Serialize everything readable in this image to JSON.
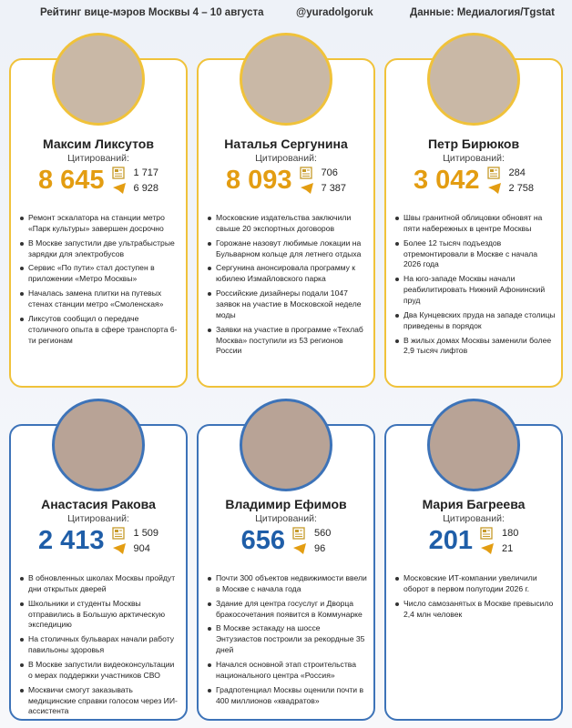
{
  "header": {
    "title": "Рейтинг вице-мэров Москвы 4 – 10 августа",
    "channel": "@yuradolgoruk",
    "source": "Данные: Медиалогия/Tgstat"
  },
  "cards": [
    {
      "name": "Максим Ликсутов",
      "label": "Цитирований:",
      "total": "8 645",
      "media": "1 717",
      "telegram": "6 928",
      "items": [
        "Ремонт эскалатора на станции метро «Парк культуры» завершен досрочно",
        "В Москве запустили две ультрабыстрые зарядки для электробусов",
        "Сервис «По пути» стал доступен в приложении «Метро Москвы»",
        "Началась замена плитки на путевых стенах станции метро «Смоленская»",
        "Ликсутов сообщил о передаче столичного опыта в сфере транспорта 6-ти регионам"
      ]
    },
    {
      "name": "Наталья Сергунина",
      "label": "Цитирований:",
      "total": "8 093",
      "media": "706",
      "telegram": "7 387",
      "items": [
        "Московские издательства заключили свыше 20 экспортных договоров",
        "Горожане назовут любимые локации на Бульварном кольце для летнего отдыха",
        "Сергунина анонсировала программу к юбилею Измайловского парка",
        "Российские дизайнеры подали 1047 заявок на участие в Московской неделе моды",
        "Заявки на участие в программе «Техлаб Москва» поступили из 53 регионов России"
      ]
    },
    {
      "name": "Петр Бирюков",
      "label": "Цитирований:",
      "total": "3 042",
      "media": "284",
      "telegram": "2 758",
      "items": [
        "Швы гранитной облицовки обновят на пяти набережных в центре Москвы",
        "Более 12 тысяч подъездов отремонтировали в Москве с начала 2026 года",
        "На юго-западе Москвы начали реабилитировать Нижний Афонинский пруд",
        "Два Кунцевских пруда на западе столицы приведены в порядок",
        "В жилых домах Москвы заменили более 2,9 тысяч лифтов"
      ]
    },
    {
      "name": "Анастасия Ракова",
      "label": "Цитирований:",
      "total": "2 413",
      "media": "1 509",
      "telegram": "904",
      "items": [
        "В обновленных школах Москвы пройдут дни открытых дверей",
        "Школьники и студенты Москвы отправились в Большую арктическую экспедицию",
        "На столичных бульварах начали работу павильоны здоровья",
        "В Москве запустили видеоконсультации о мерах поддержки участников СВО",
        "Москвичи смогут заказывать медицинские справки голосом через ИИ-ассистента"
      ]
    },
    {
      "name": "Владимир Ефимов",
      "label": "Цитирований:",
      "total": "656",
      "media": "560",
      "telegram": "96",
      "items": [
        "Почти 300 объектов недвижимости ввели в Москве с начала года",
        "Здание для центра госуслуг и Дворца бракосочетания появится в Коммунарке",
        "В Москве эстакаду на шоссе Энтузиастов построили за рекордные 35 дней",
        "Начался основной этап строительства национального центра «Россия»",
        "Градпотенциал Москвы оценили почти в 400 миллионов «квадратов»"
      ]
    },
    {
      "name": "Мария Багреева",
      "label": "Цитирований:",
      "total": "201",
      "media": "180",
      "telegram": "21",
      "items": [
        "Московские ИТ-компании увеличили оборот в первом полугодии 2026 г.",
        "Число самозанятых в Москве превысило 2,4 млн человек"
      ]
    }
  ]
}
